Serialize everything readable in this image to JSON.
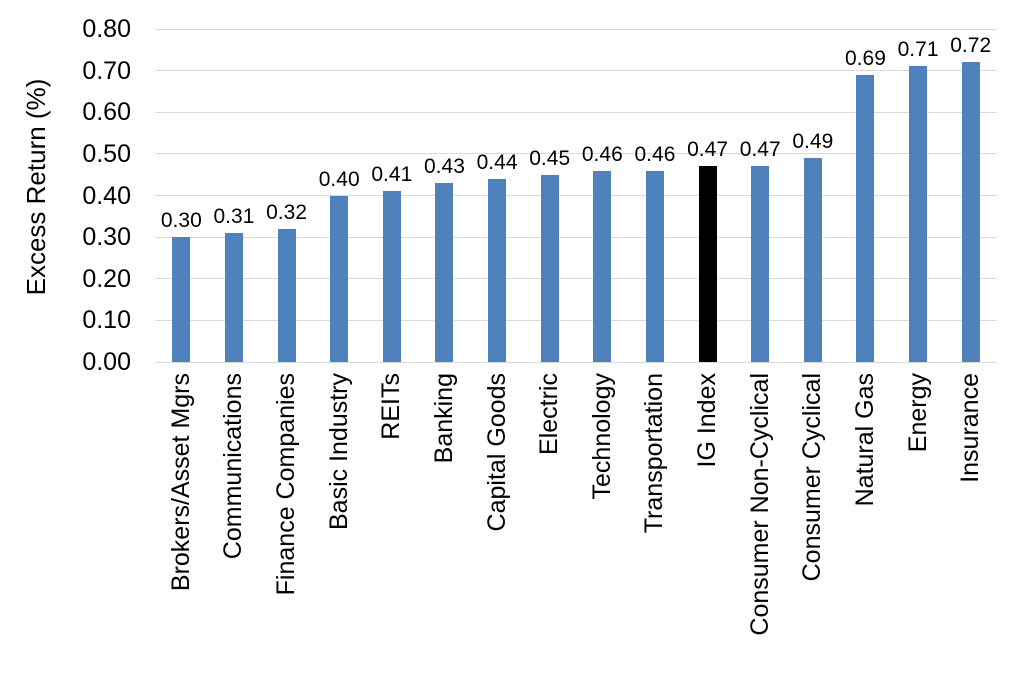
{
  "chart_data": {
    "type": "bar",
    "title": "",
    "xlabel": "",
    "ylabel": "Excess Return (%)",
    "categories": [
      "Brokers/Asset Mgrs",
      "Communications",
      "Finance Companies",
      "Basic Industry",
      "REITs",
      "Banking",
      "Capital Goods",
      "Electric",
      "Technology",
      "Transportation",
      "IG Index",
      "Consumer Non-Cyclical",
      "Consumer Cyclical",
      "Natural Gas",
      "Energy",
      "Insurance"
    ],
    "values": [
      0.3,
      0.31,
      0.32,
      0.4,
      0.41,
      0.43,
      0.44,
      0.45,
      0.46,
      0.46,
      0.47,
      0.47,
      0.49,
      0.69,
      0.71,
      0.72
    ],
    "data_labels": [
      "0.30",
      "0.31",
      "0.32",
      "0.40",
      "0.41",
      "0.43",
      "0.44",
      "0.45",
      "0.46",
      "0.46",
      "0.47",
      "0.47",
      "0.49",
      "0.69",
      "0.71",
      "0.72"
    ],
    "ylim": [
      0,
      0.8
    ],
    "yticks": [
      "0.00",
      "0.10",
      "0.20",
      "0.30",
      "0.40",
      "0.50",
      "0.60",
      "0.70",
      "0.80"
    ],
    "grid": true,
    "legend": false,
    "category_labels_rotated_90": true,
    "bar_color": "#4F81BD",
    "highlight_category": "IG Index",
    "highlight_color": "#000000",
    "gridline_color": "#D9D9D9",
    "text_color": "#000000",
    "background_color": "#FFFFFF"
  }
}
